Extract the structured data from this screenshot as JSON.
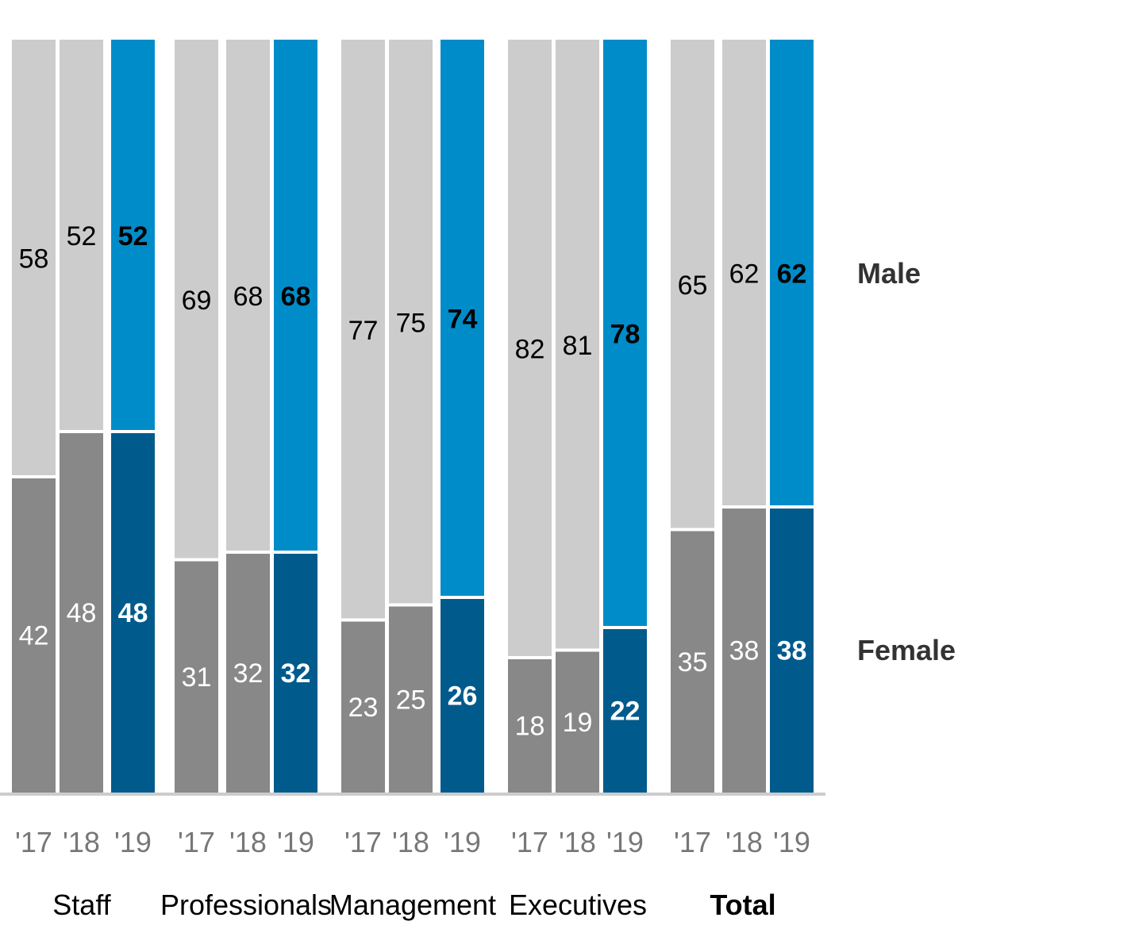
{
  "chart_data": {
    "type": "bar",
    "stacked": true,
    "percent": true,
    "groups": [
      {
        "name": "Staff",
        "years": [
          "'17",
          "'18",
          "'19"
        ],
        "female": [
          42,
          48,
          48
        ],
        "male": [
          58,
          52,
          52
        ]
      },
      {
        "name": "Professionals",
        "years": [
          "'17",
          "'18",
          "'19"
        ],
        "female": [
          31,
          32,
          32
        ],
        "male": [
          69,
          68,
          68
        ]
      },
      {
        "name": "Management",
        "years": [
          "'17",
          "'18",
          "'19"
        ],
        "female": [
          23,
          25,
          26
        ],
        "male": [
          77,
          75,
          74
        ]
      },
      {
        "name": "Executives",
        "years": [
          "'17",
          "'18",
          "'19"
        ],
        "female": [
          18,
          19,
          22
        ],
        "male": [
          82,
          81,
          78
        ]
      },
      {
        "name": "Total",
        "years": [
          "'17",
          "'18",
          "'19"
        ],
        "female": [
          35,
          38,
          38
        ],
        "male": [
          65,
          62,
          62
        ],
        "emphasis": true
      }
    ],
    "legend": {
      "male": "Male",
      "female": "Female"
    },
    "colors": {
      "male_past": "#cccccc",
      "female_past": "#888888",
      "male_current": "#008cc9",
      "female_current": "#005a8c",
      "axis": "#cccccc",
      "tick_text": "#777777",
      "legend_text": "#333333"
    }
  }
}
